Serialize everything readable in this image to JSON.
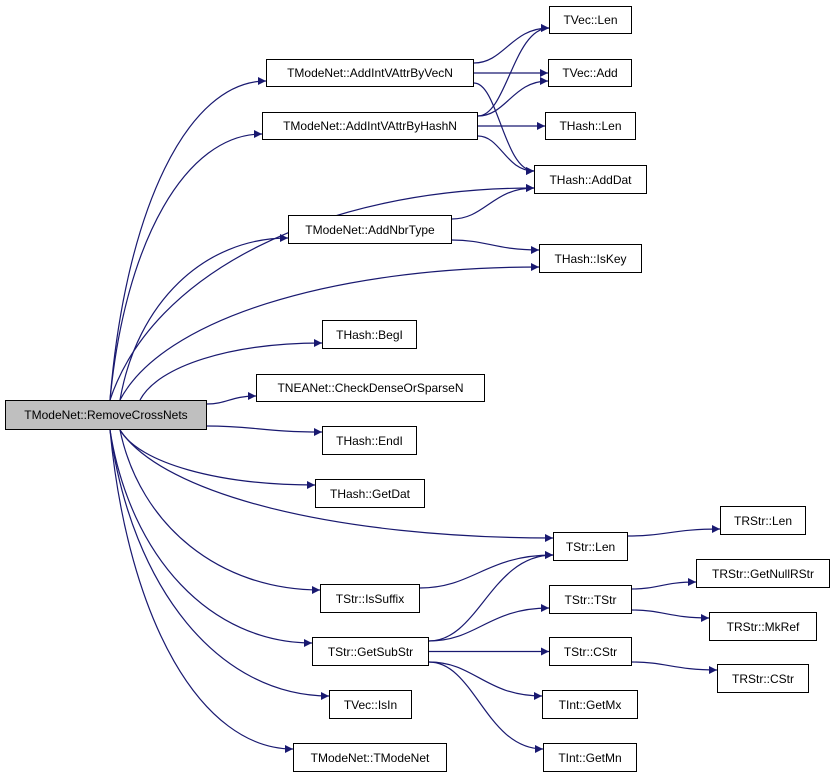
{
  "colors": {
    "edge": "#191970",
    "root_fill": "#bfbfbf",
    "node_fill": "#ffffff"
  },
  "nodes": {
    "root": "TModeNet::RemoveCrossNets",
    "vecn": "TModeNet::AddIntVAttrByVecN",
    "hashn": "TModeNet::AddIntVAttrByHashN",
    "nbrtype": "TModeNet::AddNbrType",
    "begi": "THash::BegI",
    "checkdense": "TNEANet::CheckDenseOrSparseN",
    "endi": "THash::EndI",
    "getdat": "THash::GetDat",
    "issuffix": "TStr::IsSuffix",
    "getsubstr": "TStr::GetSubStr",
    "isin": "TVec::IsIn",
    "tmodenet": "TModeNet::TModeNet",
    "veclen": "TVec::Len",
    "vecadd": "TVec::Add",
    "hashlen": "THash::Len",
    "adddat": "THash::AddDat",
    "iskey": "THash::IsKey",
    "strlen": "TStr::Len",
    "tstr": "TStr::TStr",
    "cstr": "TStr::CStr",
    "getmx": "TInt::GetMx",
    "getmn": "TInt::GetMn",
    "rstrlen": "TRStr::Len",
    "getnullrstr": "TRStr::GetNullRStr",
    "mkref": "TRStr::MkRef",
    "rstrcstr": "TRStr::CStr"
  },
  "edges": [
    [
      "root",
      "vecn"
    ],
    [
      "root",
      "hashn"
    ],
    [
      "root",
      "adddat"
    ],
    [
      "root",
      "nbrtype"
    ],
    [
      "root",
      "iskey"
    ],
    [
      "root",
      "begi"
    ],
    [
      "root",
      "checkdense"
    ],
    [
      "root",
      "endi"
    ],
    [
      "root",
      "getdat"
    ],
    [
      "root",
      "strlen"
    ],
    [
      "root",
      "issuffix"
    ],
    [
      "root",
      "getsubstr"
    ],
    [
      "root",
      "isin"
    ],
    [
      "root",
      "tmodenet"
    ],
    [
      "vecn",
      "veclen"
    ],
    [
      "vecn",
      "vecadd"
    ],
    [
      "vecn",
      "adddat"
    ],
    [
      "hashn",
      "veclen"
    ],
    [
      "hashn",
      "vecadd"
    ],
    [
      "hashn",
      "hashlen"
    ],
    [
      "hashn",
      "adddat"
    ],
    [
      "nbrtype",
      "adddat"
    ],
    [
      "nbrtype",
      "iskey"
    ],
    [
      "issuffix",
      "strlen"
    ],
    [
      "getsubstr",
      "strlen"
    ],
    [
      "getsubstr",
      "tstr"
    ],
    [
      "getsubstr",
      "cstr"
    ],
    [
      "getsubstr",
      "getmx"
    ],
    [
      "getsubstr",
      "getmn"
    ],
    [
      "strlen",
      "rstrlen"
    ],
    [
      "tstr",
      "getnullrstr"
    ],
    [
      "tstr",
      "mkref"
    ],
    [
      "cstr",
      "rstrcstr"
    ]
  ]
}
